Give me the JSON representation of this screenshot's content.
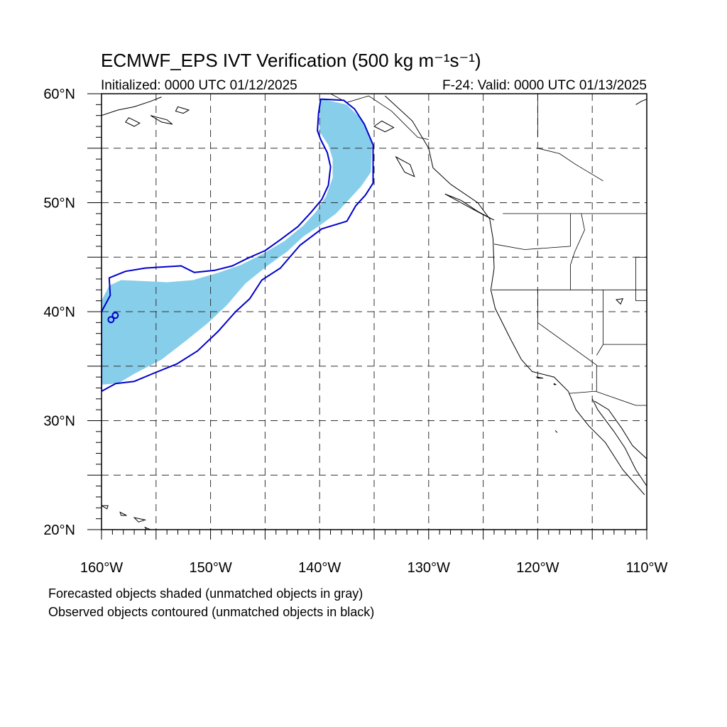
{
  "title": "ECMWF_EPS IVT Verification (500 kg m⁻¹s⁻¹)",
  "subtitle_left": "Initialized: 0000 UTC 01/12/2025",
  "subtitle_right": "F-24: Valid: 0000 UTC 01/13/2025",
  "notes": [
    "Forecasted objects shaded (unmatched objects in gray)",
    "Observed objects contoured (unmatched objects in black)"
  ],
  "map": {
    "lon_range": [
      -160,
      -110
    ],
    "lat_range": [
      20,
      60
    ],
    "lon_ticks": [
      {
        "value": -160,
        "label": "160°W"
      },
      {
        "value": -150,
        "label": "150°W"
      },
      {
        "value": -140,
        "label": "140°W"
      },
      {
        "value": -130,
        "label": "130°W"
      },
      {
        "value": -120,
        "label": "120°W"
      },
      {
        "value": -110,
        "label": "110°W"
      }
    ],
    "lat_ticks": [
      {
        "value": 60,
        "label": "60°N"
      },
      {
        "value": 50,
        "label": "50°N"
      },
      {
        "value": 40,
        "label": "40°N"
      },
      {
        "value": 30,
        "label": "30°N"
      },
      {
        "value": 20,
        "label": "20°N"
      }
    ],
    "colors": {
      "forecast_fill": "#87ceeb",
      "observed_contour": "#0000cc",
      "coastline": "#000000",
      "grid": "#333333"
    },
    "forecast_object": [
      [
        -139.7,
        59.5
      ],
      [
        -137.5,
        59.0
      ],
      [
        -136.0,
        57.5
      ],
      [
        -135.2,
        55.5
      ],
      [
        -135.3,
        52.8
      ],
      [
        -136.2,
        51.5
      ],
      [
        -137.3,
        50.3
      ],
      [
        -138.5,
        49.0
      ],
      [
        -140.0,
        47.9
      ],
      [
        -141.5,
        46.9
      ],
      [
        -143.0,
        45.5
      ],
      [
        -144.8,
        44.2
      ],
      [
        -146.8,
        42.6
      ],
      [
        -148.5,
        40.6
      ],
      [
        -150.2,
        39.0
      ],
      [
        -152.3,
        37.3
      ],
      [
        -154.5,
        35.6
      ],
      [
        -157.0,
        34.3
      ],
      [
        -158.5,
        33.4
      ],
      [
        -160.0,
        33.3
      ],
      [
        -160.0,
        41.0
      ],
      [
        -159.3,
        42.4
      ],
      [
        -158.2,
        42.9
      ],
      [
        -156.0,
        42.8
      ],
      [
        -154.0,
        42.7
      ],
      [
        -151.6,
        42.9
      ],
      [
        -149.2,
        43.6
      ],
      [
        -147.2,
        44.3
      ],
      [
        -145.2,
        45.3
      ],
      [
        -143.2,
        46.5
      ],
      [
        -141.5,
        47.9
      ],
      [
        -140.3,
        49.2
      ],
      [
        -139.4,
        50.6
      ],
      [
        -138.8,
        52.3
      ],
      [
        -138.8,
        54.0
      ],
      [
        -139.2,
        55.3
      ],
      [
        -140.0,
        56.5
      ],
      [
        -140.0,
        58.0
      ],
      [
        -139.9,
        59.5
      ]
    ],
    "observed_contour": [
      [
        -139.7,
        59.5
      ],
      [
        -137.8,
        59.4
      ],
      [
        -136.8,
        58.6
      ],
      [
        -135.9,
        57.2
      ],
      [
        -135.1,
        55.3
      ],
      [
        -135.1,
        51.8
      ],
      [
        -135.8,
        50.7
      ],
      [
        -136.7,
        49.7
      ],
      [
        -137.5,
        48.3
      ],
      [
        -139.8,
        47.6
      ],
      [
        -141.8,
        46.1
      ],
      [
        -143.6,
        44.0
      ],
      [
        -145.3,
        42.9
      ],
      [
        -146.4,
        41.2
      ],
      [
        -147.7,
        40.0
      ],
      [
        -149.3,
        38.2
      ],
      [
        -151.2,
        36.4
      ],
      [
        -153.1,
        35.2
      ],
      [
        -155.1,
        34.4
      ],
      [
        -157.0,
        33.6
      ],
      [
        -158.7,
        33.4
      ],
      [
        -160.0,
        32.7
      ],
      [
        -160.0,
        40.0
      ],
      [
        -159.2,
        41.5
      ],
      [
        -159.3,
        43.1
      ],
      [
        -157.8,
        43.7
      ],
      [
        -156.0,
        44.0
      ],
      [
        -154.5,
        44.1
      ],
      [
        -152.7,
        44.2
      ],
      [
        -151.5,
        43.6
      ],
      [
        -149.6,
        43.8
      ],
      [
        -148.0,
        44.2
      ],
      [
        -146.6,
        44.9
      ],
      [
        -145.0,
        45.6
      ],
      [
        -143.6,
        46.6
      ],
      [
        -142.0,
        47.8
      ],
      [
        -140.8,
        49.1
      ],
      [
        -139.8,
        50.3
      ],
      [
        -139.2,
        51.6
      ],
      [
        -139.0,
        53.3
      ],
      [
        -139.3,
        54.6
      ],
      [
        -139.9,
        55.8
      ],
      [
        -140.2,
        56.6
      ],
      [
        -140.1,
        58.2
      ],
      [
        -139.9,
        59.5
      ]
    ],
    "observed_small_circle": [
      -159.0,
      39.4
    ],
    "coastline_main": [
      [
        -134.0,
        59.8
      ],
      [
        -131.5,
        57.5
      ],
      [
        -130.0,
        55.0
      ],
      [
        -129.6,
        53.2
      ],
      [
        -128.0,
        51.7
      ],
      [
        -125.5,
        50.0
      ],
      [
        -124.4,
        48.5
      ],
      [
        -124.1,
        46.7
      ],
      [
        -124.0,
        44.0
      ],
      [
        -124.3,
        42.0
      ],
      [
        -123.9,
        40.3
      ],
      [
        -122.5,
        37.5
      ],
      [
        -121.5,
        35.6
      ],
      [
        -120.5,
        34.5
      ],
      [
        -118.5,
        34.0
      ],
      [
        -117.2,
        32.7
      ],
      [
        -116.5,
        31.0
      ],
      [
        -115.3,
        29.5
      ],
      [
        -113.8,
        28.0
      ],
      [
        -112.2,
        25.5
      ],
      [
        -110.2,
        23.2
      ]
    ],
    "coastline_baja_gulf": [
      [
        -115.0,
        32.0
      ],
      [
        -114.5,
        31.0
      ],
      [
        -113.0,
        29.0
      ],
      [
        -112.0,
        27.5
      ],
      [
        -111.0,
        25.5
      ],
      [
        -110.0,
        24.0
      ]
    ],
    "coastline_mainland_gulf": [
      [
        -114.8,
        31.8
      ],
      [
        -113.5,
        31.0
      ],
      [
        -112.3,
        29.3
      ],
      [
        -111.3,
        27.7
      ],
      [
        -110.0,
        26.5
      ]
    ],
    "coastline_alaska": [
      [
        -160.0,
        58.0
      ],
      [
        -158.5,
        58.5
      ],
      [
        -157.0,
        58.8
      ],
      [
        -155.5,
        59.3
      ],
      [
        -154.5,
        59.7
      ]
    ],
    "coastline_ne_corner": [
      [
        -111.0,
        59.0
      ],
      [
        -110.5,
        59.3
      ],
      [
        -110.0,
        59.5
      ]
    ],
    "borders": [
      [
        [
          -123.2,
          49.0
        ],
        [
          -110.0,
          49.0
        ]
      ],
      [
        [
          -124.2,
          42.0
        ],
        [
          -110.0,
          42.0
        ]
      ],
      [
        [
          -124.0,
          46.2
        ],
        [
          -121.2,
          45.7
        ],
        [
          -117.0,
          46.0
        ],
        [
          -117.0,
          49.0
        ]
      ],
      [
        [
          -117.0,
          42.0
        ],
        [
          -117.0,
          44.3
        ],
        [
          -116.6,
          45.5
        ],
        [
          -115.7,
          47.5
        ],
        [
          -116.0,
          49.0
        ]
      ],
      [
        [
          -120.0,
          42.0
        ],
        [
          -120.0,
          39.0
        ],
        [
          -114.6,
          35.1
        ],
        [
          -114.6,
          34.2
        ],
        [
          -114.6,
          32.7
        ]
      ],
      [
        [
          -114.0,
          42.0
        ],
        [
          -114.0,
          37.0
        ],
        [
          -114.6,
          36.0
        ]
      ],
      [
        [
          -111.0,
          45.0
        ],
        [
          -110.0,
          45.0
        ]
      ],
      [
        [
          -111.0,
          45.0
        ],
        [
          -111.0,
          41.0
        ],
        [
          -110.0,
          41.0
        ]
      ],
      [
        [
          -117.1,
          32.5
        ],
        [
          -114.7,
          32.7
        ],
        [
          -111.0,
          31.4
        ],
        [
          -110.0,
          31.4
        ]
      ],
      [
        [
          -120.0,
          60.0
        ],
        [
          -120.0,
          56.0
        ]
      ],
      [
        [
          -114.0,
          37.0
        ],
        [
          -110.0,
          37.0
        ]
      ],
      [
        [
          -139.0,
          60.0
        ],
        [
          -137.5,
          59.2
        ],
        [
          -135.5,
          59.8
        ],
        [
          -133.4,
          58.4
        ],
        [
          -131.0,
          56.0
        ],
        [
          -130.0,
          55.8
        ]
      ],
      [
        [
          -120.0,
          55.0
        ],
        [
          -118.0,
          54.5
        ],
        [
          -116.5,
          53.5
        ],
        [
          -114.0,
          52.0
        ]
      ]
    ],
    "islands": [
      [
        [
          -128.5,
          50.8
        ],
        [
          -127.0,
          50.2
        ],
        [
          -125.5,
          49.2
        ],
        [
          -124.0,
          48.4
        ],
        [
          -125.0,
          48.9
        ],
        [
          -126.5,
          49.7
        ],
        [
          -128.5,
          50.8
        ]
      ],
      [
        [
          -133.0,
          54.2
        ],
        [
          -131.7,
          53.5
        ],
        [
          -131.3,
          52.4
        ],
        [
          -132.2,
          52.8
        ],
        [
          -133.0,
          54.2
        ]
      ],
      [
        [
          -135.0,
          57.0
        ],
        [
          -134.0,
          56.5
        ],
        [
          -133.2,
          56.9
        ],
        [
          -134.3,
          57.5
        ],
        [
          -135.0,
          57.0
        ]
      ],
      [
        [
          -160.0,
          22.2
        ],
        [
          -159.4,
          22.2
        ],
        [
          -159.5,
          21.9
        ],
        [
          -160.0,
          22.2
        ]
      ],
      [
        [
          -158.3,
          21.6
        ],
        [
          -157.7,
          21.3
        ],
        [
          -158.2,
          21.3
        ],
        [
          -158.3,
          21.6
        ]
      ],
      [
        [
          -157.0,
          21.1
        ],
        [
          -156.0,
          20.9
        ],
        [
          -156.6,
          20.7
        ],
        [
          -157.0,
          21.1
        ]
      ],
      [
        [
          -156.0,
          20.2
        ],
        [
          -155.0,
          19.8
        ],
        [
          -155.8,
          19.9
        ],
        [
          -156.0,
          20.2
        ]
      ],
      [
        [
          -118.5,
          33.4
        ],
        [
          -118.3,
          33.3
        ],
        [
          -118.5,
          33.3
        ],
        [
          -118.5,
          33.4
        ]
      ],
      [
        [
          -120.1,
          34.0
        ],
        [
          -119.5,
          33.9
        ],
        [
          -120.0,
          33.9
        ],
        [
          -120.1,
          34.0
        ]
      ],
      [
        [
          -118.4,
          29.1
        ],
        [
          -118.2,
          28.9
        ],
        [
          -118.4,
          29.1
        ]
      ],
      [
        [
          -112.8,
          41.1
        ],
        [
          -112.2,
          41.2
        ],
        [
          -112.4,
          40.7
        ],
        [
          -112.8,
          41.1
        ]
      ]
    ],
    "alaska_islands": [
      [
        [
          -153.0,
          58.8
        ],
        [
          -152.0,
          58.5
        ],
        [
          -152.5,
          58.2
        ],
        [
          -153.2,
          58.4
        ],
        [
          -153.0,
          58.8
        ]
      ],
      [
        [
          -155.5,
          58.0
        ],
        [
          -154.0,
          57.6
        ],
        [
          -153.5,
          57.2
        ],
        [
          -154.5,
          57.4
        ],
        [
          -155.5,
          58.0
        ]
      ],
      [
        [
          -157.5,
          57.8
        ],
        [
          -156.5,
          57.3
        ],
        [
          -157.0,
          57.0
        ],
        [
          -157.8,
          57.4
        ],
        [
          -157.5,
          57.8
        ]
      ]
    ]
  }
}
